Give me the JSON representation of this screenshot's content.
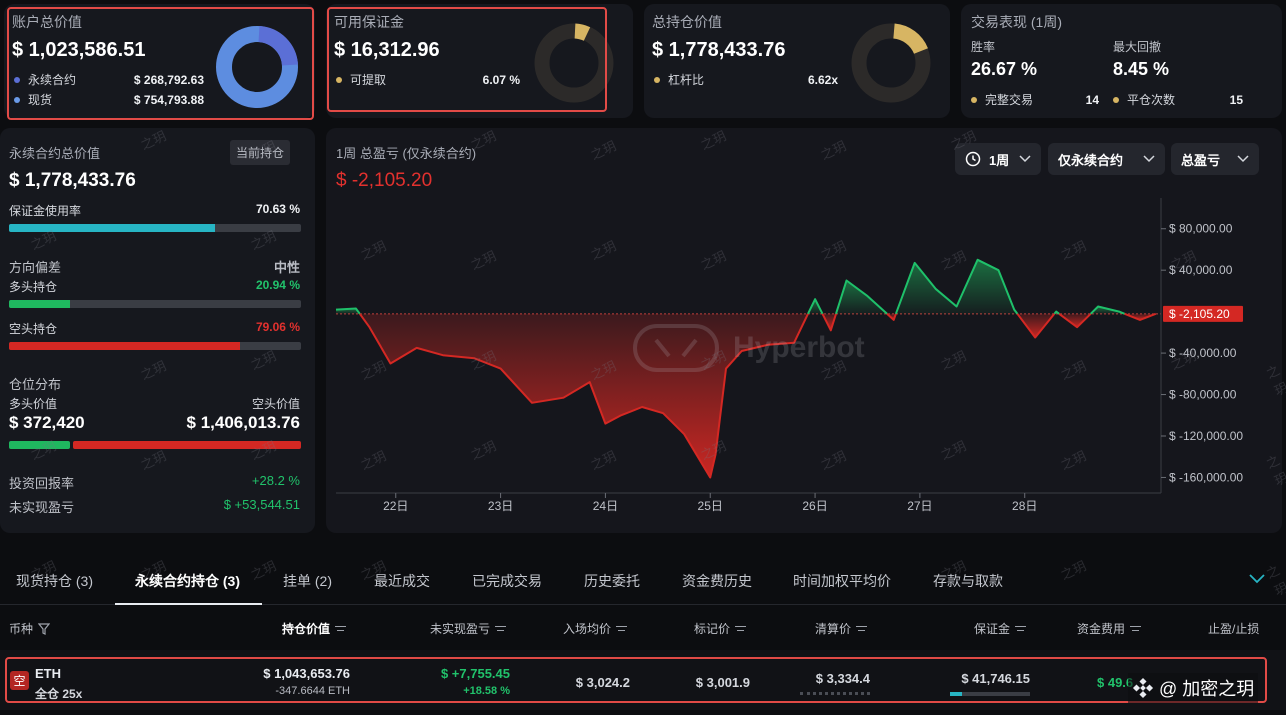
{
  "account": {
    "title": "账户总价值",
    "value": "$ 1,023,586.51",
    "legend": [
      {
        "label": "永续合约",
        "value": "$ 268,792.63",
        "color": "#5b6fd6"
      },
      {
        "label": "现货",
        "value": "$ 754,793.88",
        "color": "#6a9ae8"
      }
    ]
  },
  "margin": {
    "title": "可用保证金",
    "value": "$ 16,312.96",
    "legend_label": "可提取",
    "legend_value": "6.07 %",
    "color": "#d7b563"
  },
  "holdings": {
    "title": "总持仓价值",
    "value": "$ 1,778,433.76",
    "legend_label": "杠杆比",
    "legend_value": "6.62x",
    "color": "#d7b563"
  },
  "performance": {
    "title": "交易表现 (1周)",
    "win_label": "胜率",
    "win_value": "26.67 %",
    "drawdown_label": "最大回撤",
    "drawdown_value": "8.45 %",
    "completed_label": "完整交易",
    "completed_value": "14",
    "closes_label": "平仓次数",
    "closes_value": "15",
    "color": "#d7b563"
  },
  "perp": {
    "title": "永续合约总价值",
    "badge": "当前持仓",
    "value": "$ 1,778,433.76",
    "margin_label": "保证金使用率",
    "margin_value": "70.63 %",
    "margin_fraction": 0.7063,
    "direction_label": "方向偏差",
    "direction_value": "中性",
    "long_label": "多头持仓",
    "long_value": "20.94 %",
    "long_fraction": 0.2094,
    "short_label": "空头持仓",
    "short_value": "79.06 %",
    "short_fraction": 0.7906,
    "dist_label": "仓位分布",
    "long_val_label": "多头价值",
    "short_val_label": "空头价值",
    "long_val": "$ 372,420",
    "short_val": "$ 1,406,013.76",
    "roi_label": "投资回报率",
    "roi_value": "+28.2 %",
    "upnl_label": "未实现盈亏",
    "upnl_value": "$ +53,544.51"
  },
  "pnl": {
    "title": "1周 总盈亏 (仅永续合约)",
    "value": "$ -2,105.20",
    "period": "1周",
    "scope": "仅永续合约",
    "metric": "总盈亏",
    "watermark": "Hyperbot",
    "current_label": "$ -2,105.20"
  },
  "chart_data": {
    "type": "area",
    "title": "1周 总盈亏 (仅永续合约)",
    "x_ticks": [
      "22日",
      "23日",
      "24日",
      "25日",
      "26日",
      "27日",
      "28日"
    ],
    "y_ticks": [
      "$ 80,000.00",
      "$ 40,000.00",
      "$ -40,000.00",
      "$ -80,000.00",
      "$ -120,000.00",
      "$ -160,000.00"
    ],
    "y_tick_values": [
      80000,
      40000,
      -40000,
      -80000,
      -120000,
      -160000
    ],
    "x_tick_positions": [
      1.0,
      2.0,
      3.0,
      4.0,
      5.0,
      6.0,
      7.0
    ],
    "ylim": [
      -175000,
      100000
    ],
    "xlim": [
      0.43,
      8.3
    ],
    "baseline": -2105.2,
    "series": [
      {
        "x": [
          0.43,
          0.62,
          0.75,
          0.95,
          1.2,
          1.45,
          1.75,
          2.0,
          2.3,
          2.6,
          2.85,
          3.0,
          3.15,
          3.35,
          3.55,
          3.75,
          4.0,
          4.05,
          4.15,
          4.3,
          4.55,
          4.8,
          5.0,
          5.15,
          5.3,
          5.5,
          5.75,
          5.95,
          6.15,
          6.35,
          6.55,
          6.75,
          6.9,
          7.1,
          7.3,
          7.5,
          7.7,
          7.9,
          8.1,
          8.25
        ],
        "y": [
          2000,
          3000,
          -15000,
          -50000,
          -35000,
          -42000,
          -45000,
          -55000,
          -88000,
          -83000,
          -68000,
          -108000,
          -100000,
          -92000,
          -98000,
          -118000,
          -160000,
          -138000,
          -55000,
          -38000,
          -32000,
          -30000,
          12000,
          -18000,
          30000,
          15000,
          -8000,
          47000,
          22000,
          5000,
          50000,
          40000,
          2000,
          -25000,
          0,
          -15000,
          5000,
          0,
          -8000,
          -2105
        ]
      }
    ]
  },
  "tabs": [
    "现货持仓 (3)",
    "永续合约持仓 (3)",
    "挂单 (2)",
    "最近成交",
    "已完成交易",
    "历史委托",
    "资金费历史",
    "时间加权平均价",
    "存款与取款"
  ],
  "active_tab": 1,
  "table": {
    "headers": [
      "币种",
      "持仓价值",
      "未实现盈亏",
      "入场均价",
      "标记价",
      "清算价",
      "保证金",
      "资金费用",
      "止盈/止损"
    ],
    "row": {
      "badge": "空",
      "coin": "ETH",
      "mode": "全仓 25x",
      "value": "$ 1,043,653.76",
      "size": "-347.6644 ETH",
      "upnl": "$ +7,755.45",
      "upnl_pct": "+18.58 %",
      "entry": "$ 3,024.2",
      "mark": "$ 3,001.9",
      "liq": "$ 3,334.4",
      "margin": "$ 41,746.15",
      "funding": "$ 49.6"
    }
  },
  "watermark_text": "之玥",
  "corner_label": "@ 加密之玥"
}
